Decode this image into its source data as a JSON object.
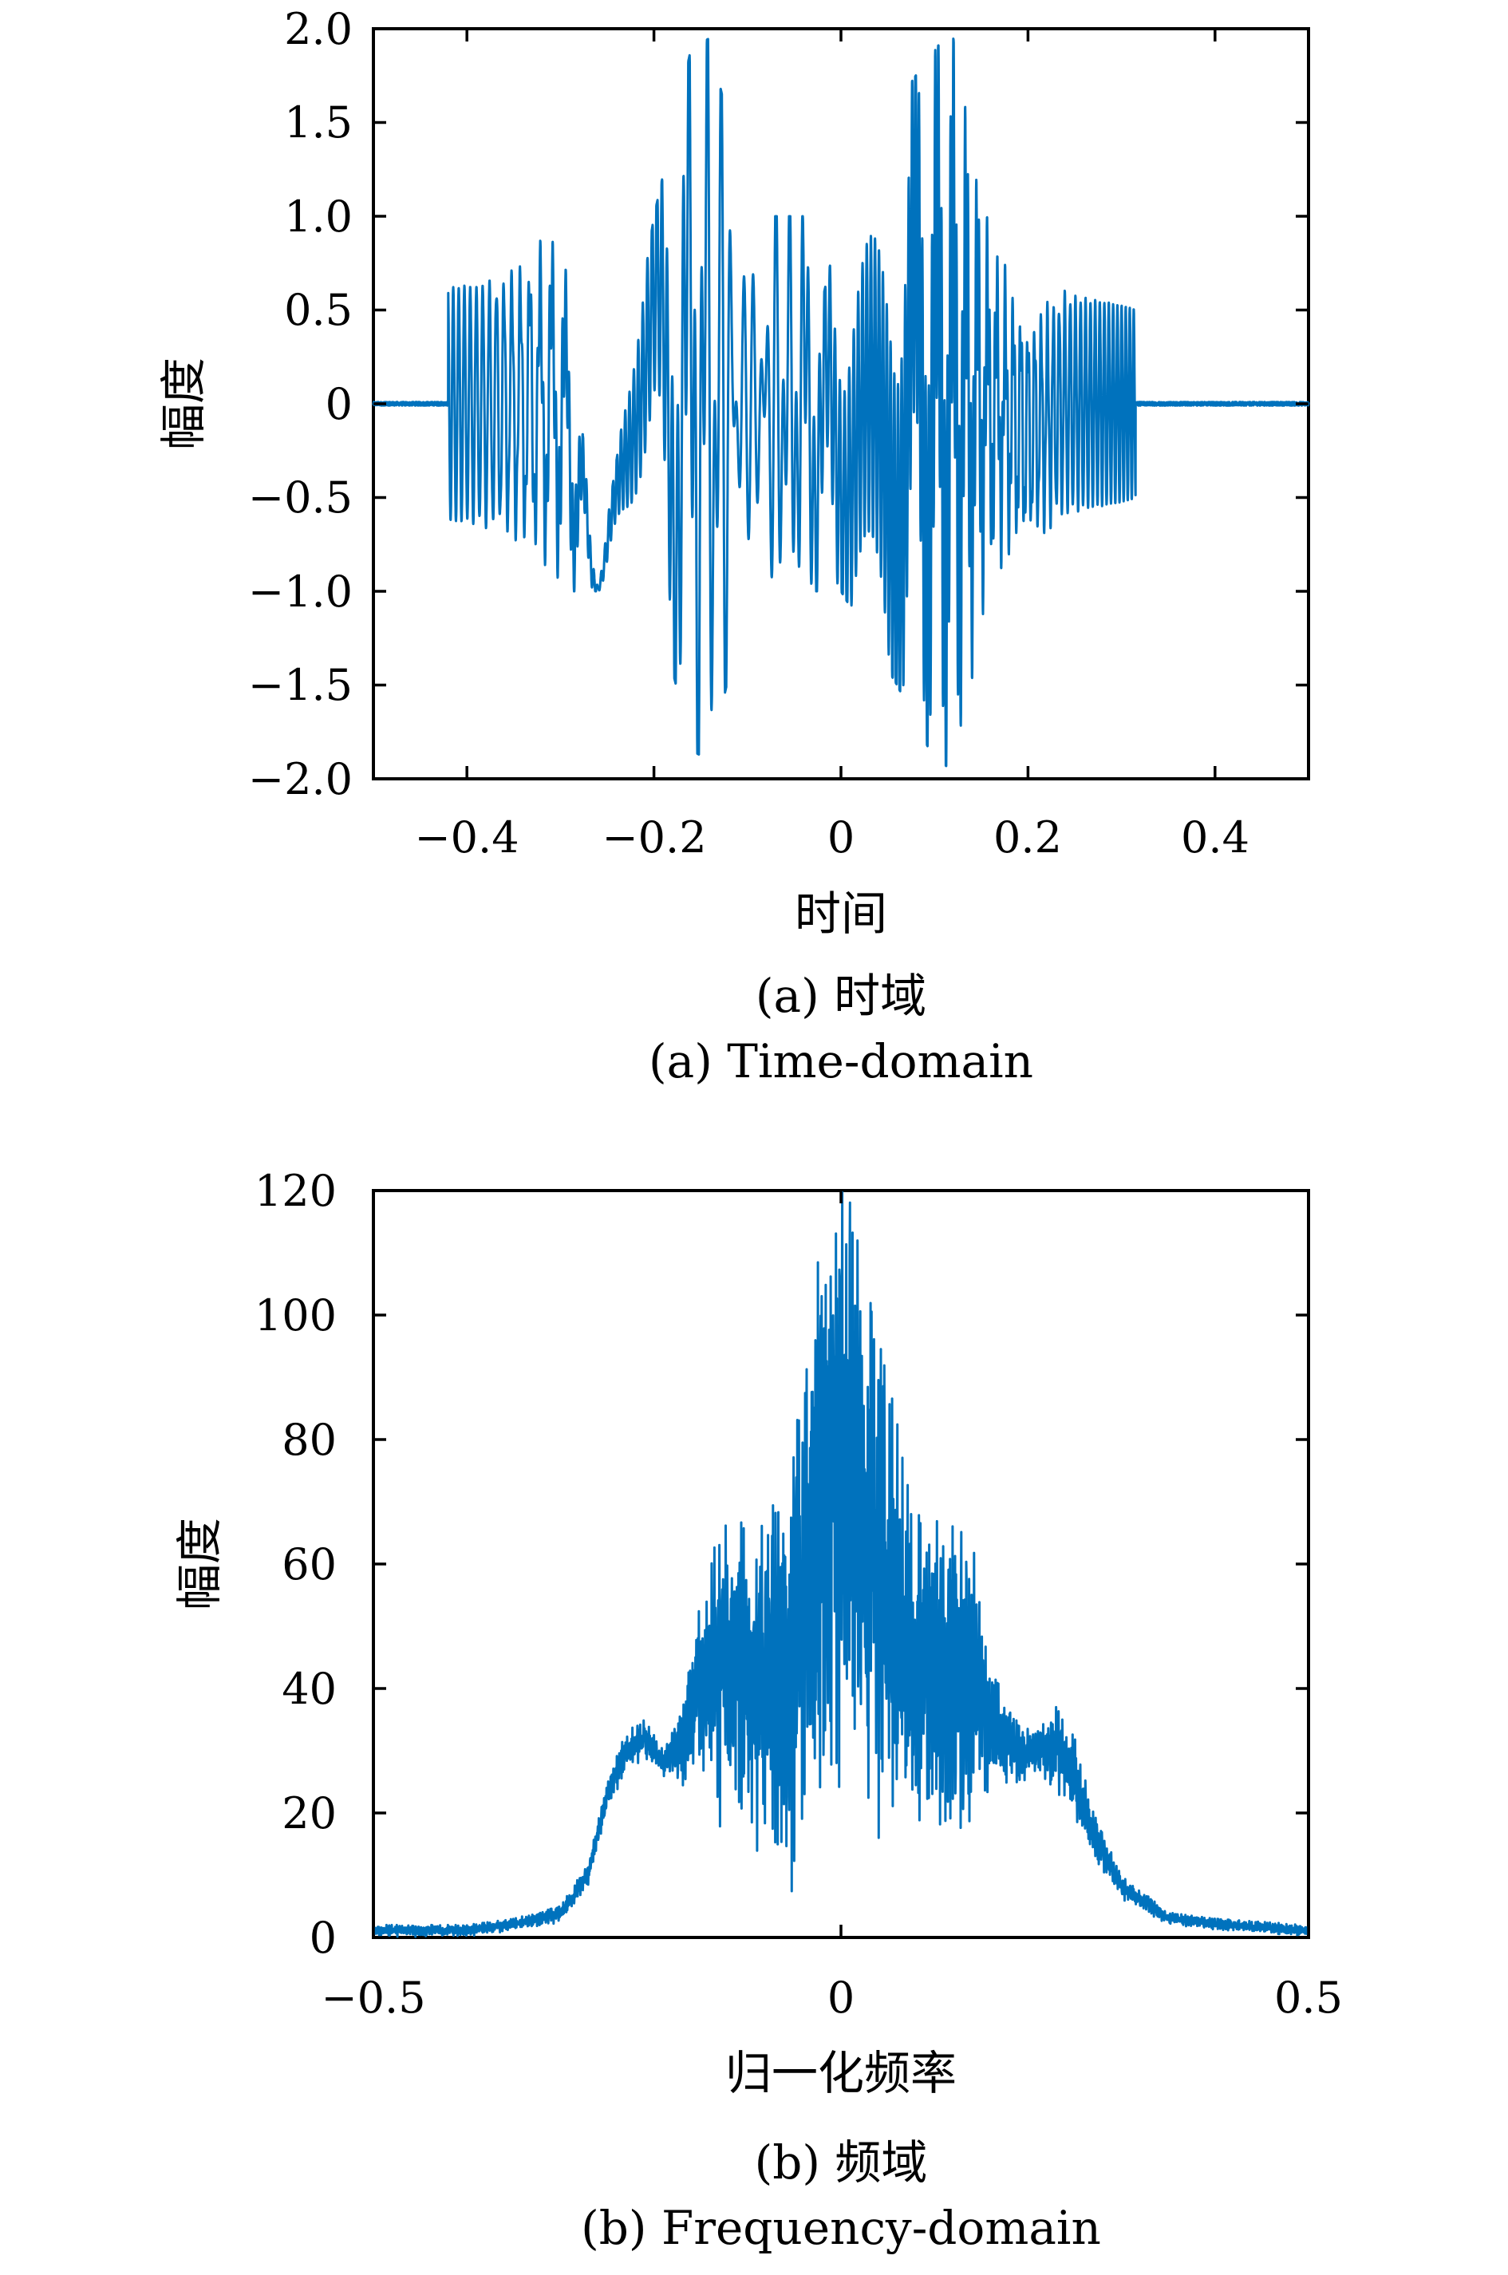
{
  "colors": {
    "series": "#0072BD",
    "axis": "#000000"
  },
  "chart_data": [
    {
      "type": "line",
      "title": "",
      "xlabel": "时间",
      "ylabel": "幅度",
      "xlim": [
        -0.5,
        0.5
      ],
      "ylim": [
        -2.0,
        2.0
      ],
      "xticks": [
        -0.4,
        -0.2,
        0,
        0.2,
        0.4
      ],
      "xtick_labels": [
        "−0.4",
        "−0.2",
        "0",
        "0.2",
        "0.4"
      ],
      "yticks": [
        2.0,
        1.5,
        1.0,
        0.5,
        0,
        -0.5,
        -1.0,
        -1.5,
        -2.0
      ],
      "ytick_labels": [
        "2.0",
        "1.5",
        "1.0",
        "0.5",
        "0",
        "−0.5",
        "−1.0",
        "−1.5",
        "−2.0"
      ],
      "grid": false,
      "caption_cn": "(a) 时域",
      "caption_en": "(a) Time-domain",
      "signal": {
        "description": "two superposed nonlinear chirps (unit amplitude) between t = -0.42 and 0.315, near-zero noise outside",
        "x": [
          -0.5,
          -0.42,
          -0.3,
          -0.26,
          -0.2,
          -0.16,
          -0.14,
          -0.1,
          -0.04,
          -0.02,
          0,
          0.06,
          0.1,
          0.12,
          0.16,
          0.2,
          0.24,
          0.28,
          0.315,
          0.5
        ],
        "envelope_max": [
          0.0,
          1.0,
          1.0,
          -0.95,
          1.0,
          1.9,
          1.95,
          1.0,
          1.0,
          0.55,
          1.0,
          1.6,
          1.9,
          1.95,
          1.0,
          0.7,
          1.0,
          1.0,
          1.0,
          0.0
        ],
        "envelope_min": [
          0.0,
          -1.0,
          -1.0,
          -1.0,
          -1.0,
          -1.85,
          -1.9,
          -1.0,
          -1.0,
          -1.0,
          -1.0,
          -1.5,
          -1.9,
          -1.95,
          -1.0,
          -1.0,
          -1.0,
          -1.0,
          -1.0,
          0.0
        ]
      }
    },
    {
      "type": "line",
      "title": "",
      "xlabel": "归一化频率",
      "ylabel": "幅度",
      "xlim": [
        -0.5,
        0.5
      ],
      "ylim": [
        0,
        120
      ],
      "xticks": [
        -0.5,
        0,
        0.5
      ],
      "xtick_labels": [
        "−0.5",
        "0",
        "0.5"
      ],
      "yticks": [
        120,
        100,
        80,
        60,
        40,
        20,
        0
      ],
      "ytick_labels": [
        "120",
        "100",
        "80",
        "60",
        "40",
        "20",
        "0"
      ],
      "grid": false,
      "caption_cn": "(b) 频域",
      "caption_en": "(b) Frequency-domain",
      "spectrum": {
        "description": "magnitude spectrum, noisy; upper and lower envelope per frequency",
        "x": [
          -0.5,
          -0.4,
          -0.35,
          -0.3,
          -0.27,
          -0.25,
          -0.23,
          -0.21,
          -0.19,
          -0.17,
          -0.14,
          -0.12,
          -0.08,
          -0.05,
          -0.03,
          -0.01,
          0,
          0.01,
          0.03,
          0.05,
          0.08,
          0.12,
          0.14,
          0.16,
          0.19,
          0.21,
          0.23,
          0.25,
          0.27,
          0.3,
          0.35,
          0.4,
          0.5
        ],
        "upper": [
          2,
          2,
          3,
          5,
          12,
          25,
          33,
          35,
          30,
          38,
          62,
          67,
          66,
          80,
          105,
          118,
          120,
          118,
          103,
          90,
          68,
          66,
          64,
          45,
          34,
          33,
          37,
          32,
          20,
          10,
          4,
          3,
          2
        ],
        "lower": [
          0,
          0,
          1,
          2,
          8,
          20,
          26,
          28,
          25,
          24,
          20,
          15,
          8,
          3,
          8,
          10,
          25,
          12,
          8,
          10,
          6,
          10,
          15,
          22,
          24,
          26,
          22,
          18,
          12,
          6,
          2,
          1,
          0
        ]
      }
    }
  ]
}
